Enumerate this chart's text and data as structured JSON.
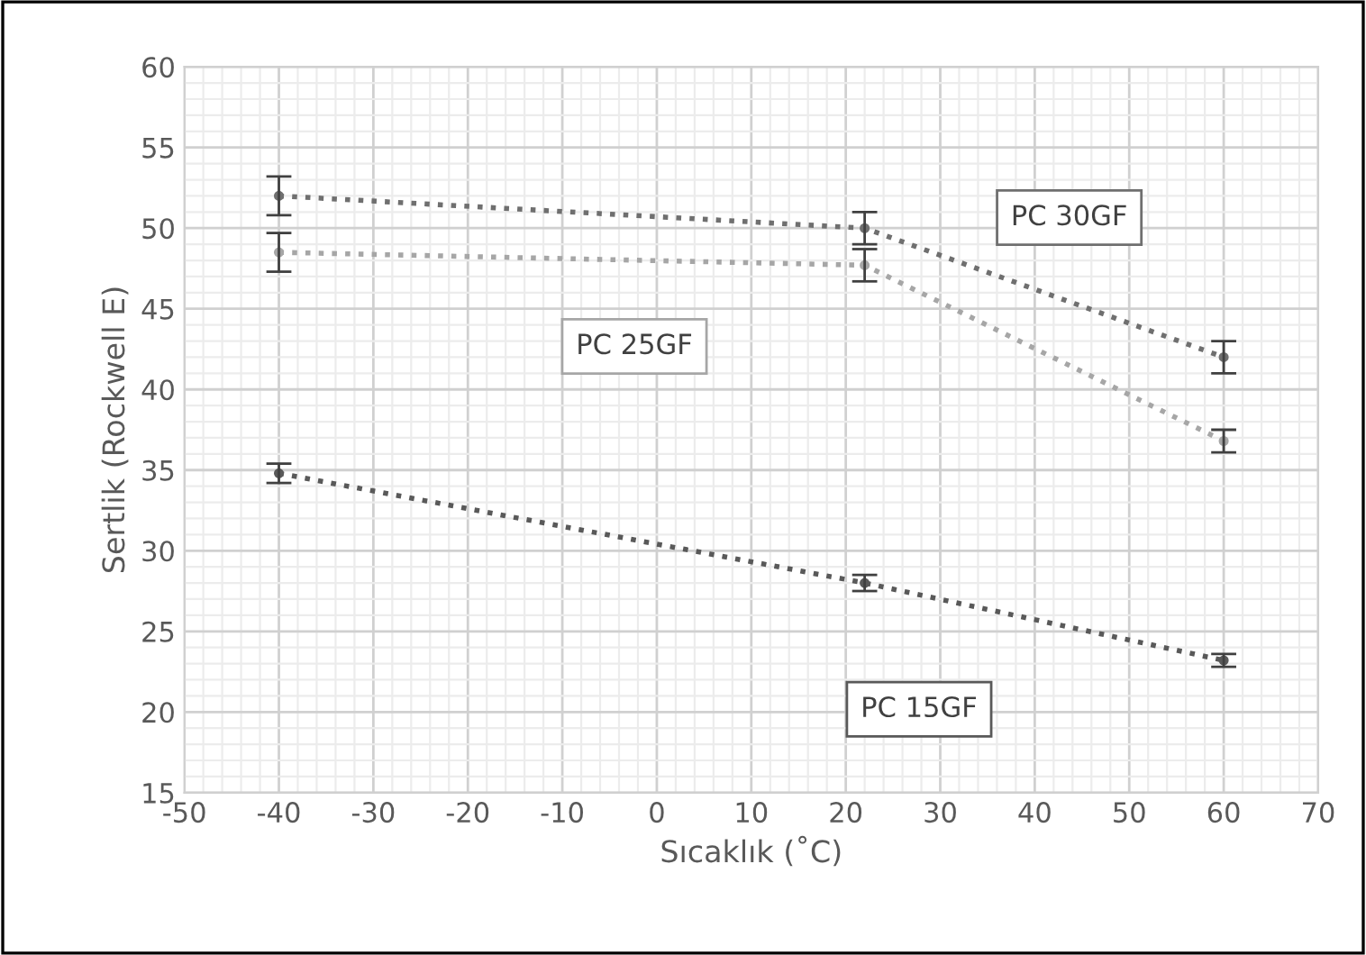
{
  "chart_data": {
    "type": "line",
    "xlabel": "Sıcaklık (˚C)",
    "ylabel": "Sertlik (Rockwell E)",
    "x": [
      -40,
      22,
      60
    ],
    "series": [
      {
        "name": "PC 30GF",
        "color": "#6f6f6f",
        "values": [
          52.0,
          50.0,
          42.0
        ],
        "errors": [
          1.2,
          1.0,
          1.0
        ]
      },
      {
        "name": "PC 25GF",
        "color": "#a6a6a6",
        "values": [
          48.5,
          47.7,
          36.8
        ],
        "errors": [
          1.2,
          1.0,
          0.7
        ]
      },
      {
        "name": "PC 15GF",
        "color": "#595959",
        "values": [
          34.8,
          28.0,
          23.2
        ],
        "errors": [
          0.6,
          0.5,
          0.4
        ]
      }
    ],
    "xlim": [
      -50,
      70
    ],
    "xticks": [
      -50,
      -40,
      -30,
      -20,
      -10,
      0,
      10,
      20,
      30,
      40,
      50,
      60,
      70
    ],
    "ylim": [
      15,
      60
    ],
    "yticks": [
      15,
      20,
      25,
      30,
      35,
      40,
      45,
      50,
      55,
      60
    ],
    "grid": true,
    "marker": "circle",
    "line_style": "dotted"
  }
}
